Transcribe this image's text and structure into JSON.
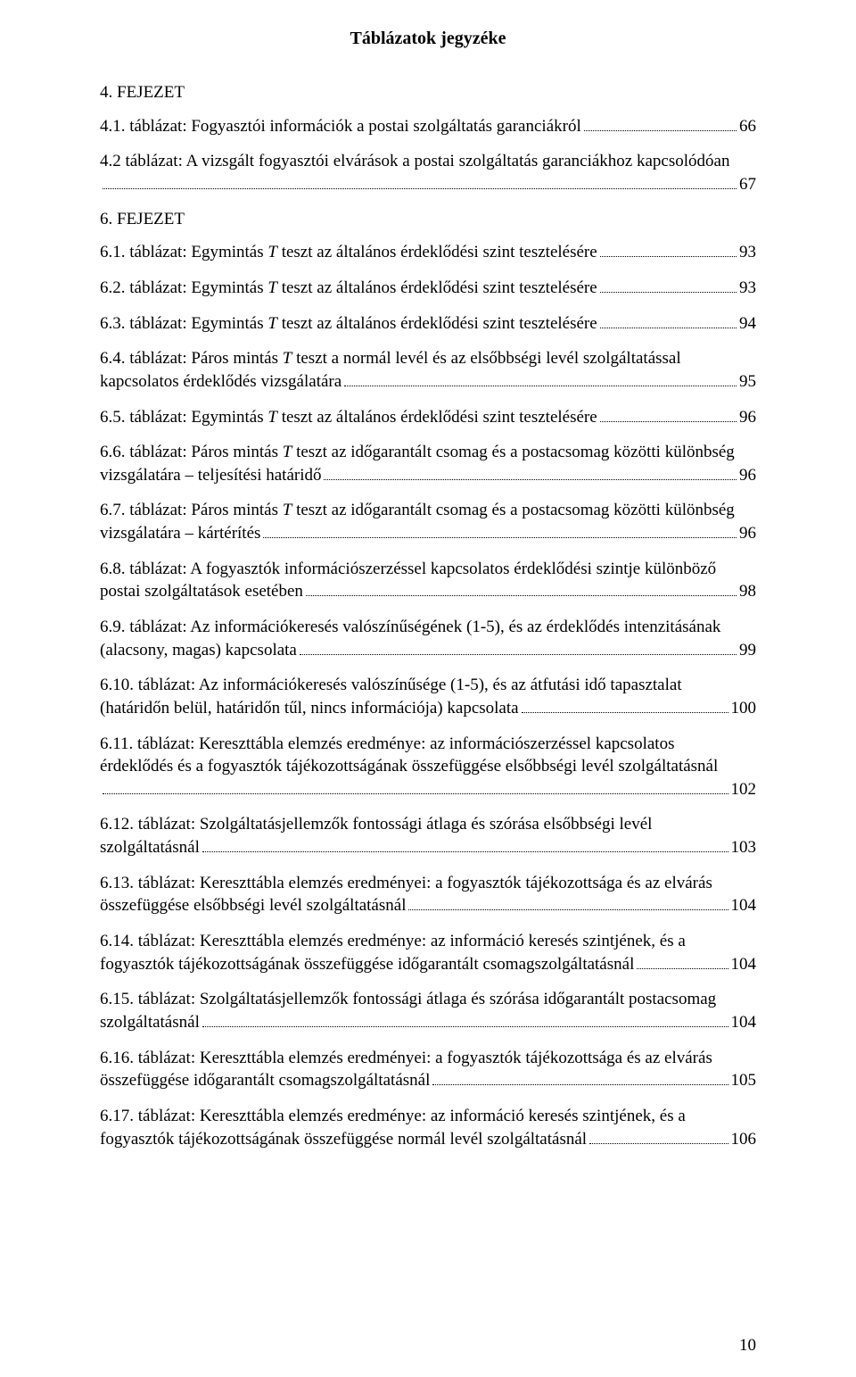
{
  "title": "Táblázatok jegyzéke",
  "chapters": [
    {
      "heading": "4. FEJEZET",
      "entries": [
        {
          "lines": [
            "4.1. táblázat: Fogyasztói információk a postai szolgáltatás garanciákról"
          ],
          "page": "66"
        },
        {
          "lines": [
            "4.2 táblázat: A vizsgált fogyasztói elvárások a postai szolgáltatás garanciákhoz kapcsolódóan",
            ""
          ],
          "page": "67"
        }
      ]
    },
    {
      "heading": "6. FEJEZET",
      "entries": [
        {
          "lines": [
            "6.1. táblázat: Egymintás <i>T</i> teszt az általános érdeklődési szint tesztelésére"
          ],
          "page": "93"
        },
        {
          "lines": [
            "6.2. táblázat: Egymintás <i>T</i> teszt az általános érdeklődési szint tesztelésére"
          ],
          "page": "93"
        },
        {
          "lines": [
            "6.3. táblázat: Egymintás <i>T</i> teszt az általános érdeklődési szint tesztelésére"
          ],
          "page": "94"
        },
        {
          "lines": [
            "6.4. táblázat: Páros mintás <i>T</i> teszt a normál levél és az elsőbbségi levél szolgáltatással",
            "kapcsolatos érdeklődés vizsgálatára"
          ],
          "page": "95"
        },
        {
          "lines": [
            "6.5. táblázat: Egymintás <i>T</i> teszt az általános érdeklődési szint tesztelésére"
          ],
          "page": "96"
        },
        {
          "lines": [
            "6.6. táblázat: Páros mintás <i>T</i> teszt az időgarantált csomag és a postacsomag közötti különbség",
            "vizsgálatára – teljesítési határidő"
          ],
          "page": "96"
        },
        {
          "lines": [
            "6.7. táblázat: Páros mintás <i>T</i> teszt az időgarantált csomag és a postacsomag közötti különbség",
            "vizsgálatára – kártérítés"
          ],
          "page": "96"
        },
        {
          "lines": [
            "6.8. táblázat: A fogyasztók információszerzéssel kapcsolatos érdeklődési szintje különböző",
            "postai szolgáltatások esetében"
          ],
          "page": "98"
        },
        {
          "lines": [
            "6.9. táblázat: Az információkeresés valószínűségének (1-5), és az érdeklődés intenzitásának",
            "(alacsony, magas) kapcsolata"
          ],
          "page": "99"
        },
        {
          "lines": [
            "6.10. táblázat: Az információkeresés valószínűsége (1-5), és az átfutási idő tapasztalat",
            "(határidőn belül, határidőn tűl, nincs információja) kapcsolata"
          ],
          "page": "100"
        },
        {
          "lines": [
            "6.11. táblázat: Kereszttábla elemzés eredménye: az információszerzéssel kapcsolatos",
            "érdeklődés és a fogyasztók tájékozottságának összefüggése elsőbbségi levél szolgáltatásnál",
            ""
          ],
          "page": "102"
        },
        {
          "lines": [
            "6.12. táblázat: Szolgáltatásjellemzők fontossági átlaga és szórása elsőbbségi levél",
            "szolgáltatásnál"
          ],
          "page": "103"
        },
        {
          "lines": [
            "6.13. táblázat: Kereszttábla elemzés eredményei: a fogyasztók tájékozottsága és az elvárás",
            "összefüggése elsőbbségi levél szolgáltatásnál"
          ],
          "page": "104"
        },
        {
          "lines": [
            "6.14. táblázat: Kereszttábla elemzés eredménye: az információ keresés szintjének, és a",
            "fogyasztók tájékozottságának összefüggése időgarantált csomagszolgáltatásnál"
          ],
          "page": "104"
        },
        {
          "lines": [
            "6.15. táblázat: Szolgáltatásjellemzők fontossági átlaga és szórása időgarantált postacsomag",
            "szolgáltatásnál"
          ],
          "page": "104"
        },
        {
          "lines": [
            "6.16. táblázat: Kereszttábla elemzés eredményei: a fogyasztók tájékozottsága és az elvárás",
            "összefüggése időgarantált csomagszolgáltatásnál"
          ],
          "page": "105"
        },
        {
          "lines": [
            "6.17. táblázat: Kereszttábla elemzés eredménye: az információ keresés szintjének, és a",
            "fogyasztók tájékozottságának összefüggése normál levél szolgáltatásnál"
          ],
          "page": "106"
        }
      ]
    }
  ],
  "pageNumber": "10"
}
